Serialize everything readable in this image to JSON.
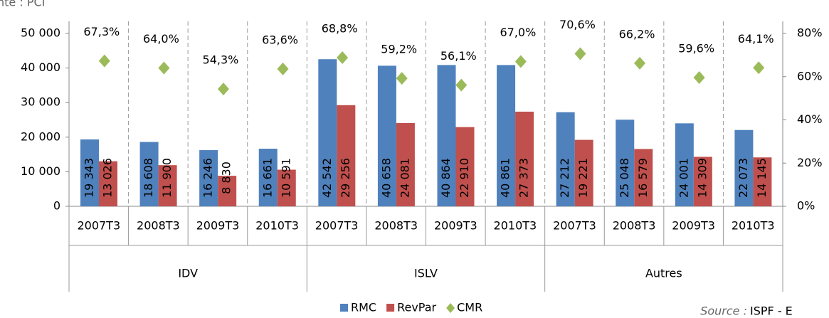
{
  "chart_data": {
    "type": "bar",
    "unit_note": "nte : PCI",
    "source_label": "Source :",
    "source": "ISPF - E",
    "categories": [
      "2007T3",
      "2008T3",
      "2009T3",
      "2010T3",
      "2007T3",
      "2008T3",
      "2009T3",
      "2010T3",
      "2007T3",
      "2008T3",
      "2009T3",
      "2010T3"
    ],
    "groups": [
      "IDV",
      "ISLV",
      "Autres"
    ],
    "series": [
      {
        "name": "RMC",
        "color": "#4f81bd",
        "values": [
          19343,
          18608,
          16246,
          16661,
          42542,
          40658,
          40864,
          40861,
          27212,
          25048,
          24001,
          22073
        ],
        "value_labels": [
          "19 343",
          "18 608",
          "16 246",
          "16 661",
          "42 542",
          "40 658",
          "40 864",
          "40 861",
          "27 212",
          "25 048",
          "24 001",
          "22 073"
        ]
      },
      {
        "name": "RevPar",
        "color": "#c0504d",
        "values": [
          13026,
          11900,
          8830,
          10591,
          29256,
          24081,
          22910,
          27373,
          19221,
          16579,
          14309,
          14145
        ],
        "value_labels": [
          "13 026",
          "11 900",
          "8 830",
          "10 591",
          "29 256",
          "24 081",
          "22 910",
          "27 373",
          "19 221",
          "16 579",
          "14 309",
          "14 145"
        ]
      },
      {
        "name": "CMR",
        "color": "#9bbb59",
        "axis": "y2",
        "values": [
          67.3,
          64.0,
          54.3,
          63.6,
          68.8,
          59.2,
          56.1,
          67.0,
          70.6,
          66.2,
          59.6,
          64.1
        ],
        "value_labels": [
          "67,3%",
          "64,0%",
          "54,3%",
          "63,6%",
          "68,8%",
          "59,2%",
          "56,1%",
          "67,0%",
          "70,6%",
          "66,2%",
          "59,6%",
          "64,1%"
        ]
      }
    ],
    "ylim": [
      0,
      50000
    ],
    "yticks": [
      0,
      {
        "value": 10000,
        "label": "10 000"
      },
      {
        "value": 20000,
        "label": "20 000"
      },
      {
        "value": 30000,
        "label": "30 000"
      },
      {
        "value": 40000,
        "label": "40 000"
      },
      {
        "value": 50000,
        "label": "50 000"
      }
    ],
    "y2lim": [
      0,
      80
    ],
    "y2ticks": [
      {
        "value": 0,
        "label": "0%"
      },
      {
        "value": 20,
        "label": "20%"
      },
      {
        "value": 40,
        "label": "40%"
      },
      {
        "value": 60,
        "label": "60%"
      },
      {
        "value": 80,
        "label": "80%"
      }
    ]
  }
}
